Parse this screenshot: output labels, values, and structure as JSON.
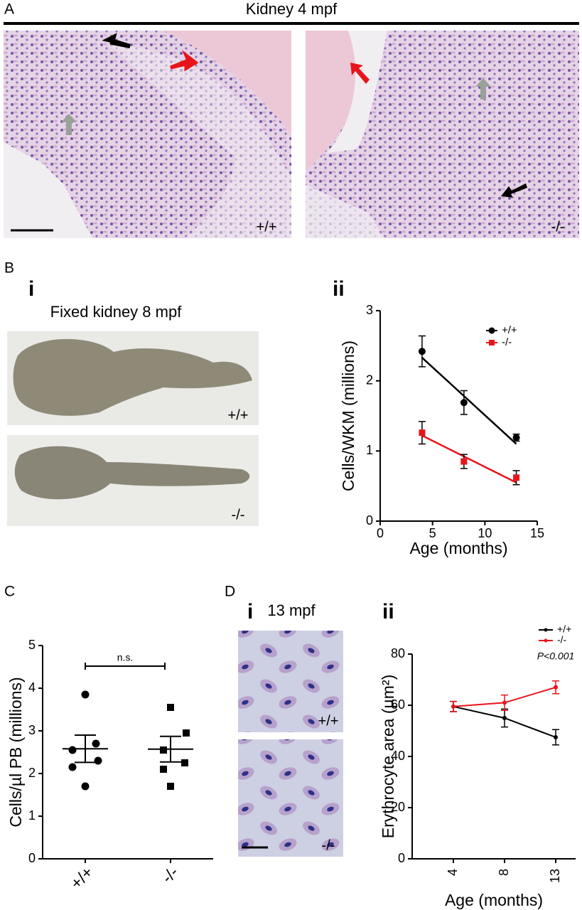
{
  "figure": {
    "panel_a": {
      "label": "A",
      "title": "Kidney 4 mpf",
      "genotypes": [
        "+/+",
        "-/-"
      ]
    },
    "panel_b": {
      "label": "B",
      "sub_i": "i",
      "title_i": "Fixed kidney 8 mpf",
      "genotypes": [
        "+/+",
        "-/-"
      ],
      "sub_ii": "ii"
    },
    "panel_c": {
      "label": "C"
    },
    "panel_d": {
      "label": "D",
      "sub_i": "i",
      "title_i": "13 mpf",
      "genotypes": [
        "+/+",
        "-/-"
      ],
      "sub_ii": "ii"
    }
  },
  "chart_data": [
    {
      "type": "scatter",
      "xlabel": "Age (months)",
      "ylabel": "Cells/WKM (millions)",
      "xlim": [
        0,
        15
      ],
      "xticks": [
        0,
        5,
        10,
        15
      ],
      "ylim": [
        0,
        3
      ],
      "yticks": [
        0,
        1,
        2,
        3
      ],
      "legend": "upper right",
      "series": [
        {
          "name": "+/+",
          "color": "#000000",
          "marker": "circle",
          "x": [
            4,
            8,
            13
          ],
          "values": [
            2.42,
            1.69,
            1.19
          ],
          "errors": [
            0.22,
            0.17,
            0.05
          ],
          "fit_x": [
            4,
            13
          ],
          "fit": [
            2.33,
            1.1
          ]
        },
        {
          "name": "-/-",
          "color": "#e8141b",
          "marker": "square",
          "x": [
            4,
            8,
            13
          ],
          "values": [
            1.26,
            0.85,
            0.62
          ],
          "errors": [
            0.16,
            0.1,
            0.1
          ],
          "fit_x": [
            4,
            13
          ],
          "fit": [
            1.22,
            0.55
          ]
        }
      ]
    },
    {
      "type": "strip",
      "ylabel": "Cells/µl PB (millions)",
      "categories": [
        "+/+",
        "-/-"
      ],
      "ylim": [
        0,
        5
      ],
      "yticks": [
        0,
        1,
        2,
        3,
        4,
        5
      ],
      "color": "#000000",
      "annotation": "n.s.",
      "groups": [
        {
          "marker": "circle",
          "values": [
            3.85,
            2.7,
            2.55,
            2.3,
            2.15,
            1.7
          ],
          "mean": 2.58,
          "sem": 0.32
        },
        {
          "marker": "square",
          "values": [
            3.55,
            2.95,
            2.55,
            2.25,
            2.1,
            1.7
          ],
          "mean": 2.57,
          "sem": 0.3
        }
      ]
    },
    {
      "type": "line",
      "xlabel": "Age (months)",
      "ylabel": "Erythrocyte area (µm²)",
      "categories": [
        "4",
        "8",
        "13"
      ],
      "ylim": [
        0,
        80
      ],
      "yticks": [
        0,
        20,
        40,
        60,
        80
      ],
      "legend": "upper right",
      "annotation": "P<0.001",
      "series": [
        {
          "name": "+/+",
          "color": "#000000",
          "values": [
            59.5,
            55,
            47.5
          ],
          "errors": [
            2,
            3.5,
            3
          ]
        },
        {
          "name": "-/-",
          "color": "#e8141b",
          "values": [
            59.5,
            61,
            67
          ],
          "errors": [
            2,
            3,
            2.5
          ]
        }
      ]
    }
  ]
}
